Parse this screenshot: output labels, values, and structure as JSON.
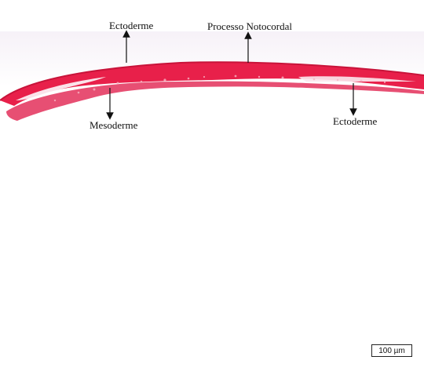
{
  "labels": {
    "ectoderme_top": "Ectoderme",
    "processo_notocordal": "Processo Notocordal",
    "mesoderme": "Mesoderme",
    "ectoderme_right": "Ectoderme"
  },
  "scale_bar": {
    "text": "100 µm"
  },
  "colors": {
    "tissue": "#e8204a",
    "tissue_dark": "#c8143a",
    "tissue_light": "#f27b94",
    "background_tint": "#efe8f2"
  }
}
